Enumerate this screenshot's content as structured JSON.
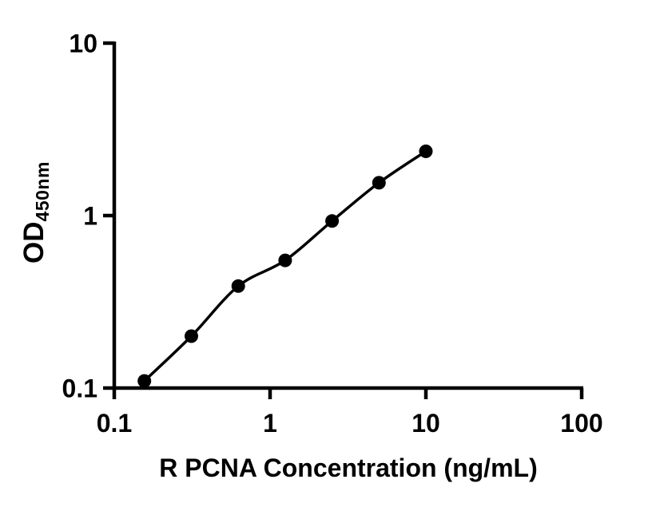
{
  "colors": {
    "foreground": "#000000",
    "background": "#ffffff"
  },
  "chart_data": {
    "type": "scatter",
    "title": "",
    "xlabel": "R PCNA Concentration (ng/mL)",
    "ylabel": {
      "main": "OD",
      "subscript": "450nm"
    },
    "x_scale": "log10",
    "y_scale": "log10",
    "xlim": [
      0.1,
      100
    ],
    "ylim": [
      0.1,
      10
    ],
    "x_tick_values": [
      0.1,
      1,
      10,
      100
    ],
    "x_tick_labels": [
      "0.1",
      "1",
      "10",
      "100"
    ],
    "y_tick_values": [
      10,
      1,
      0.1
    ],
    "y_tick_labels": [
      "10",
      "1",
      "0.1"
    ],
    "grid": false,
    "legend_position": "none",
    "marker": "filled-circle",
    "marker_color": "#000000",
    "line_color": "#000000",
    "fit_line_through_points": true,
    "points": [
      {
        "x": 0.156,
        "y": 0.11
      },
      {
        "x": 0.3125,
        "y": 0.2
      },
      {
        "x": 0.625,
        "y": 0.39
      },
      {
        "x": 1.25,
        "y": 0.55
      },
      {
        "x": 2.5,
        "y": 0.93
      },
      {
        "x": 5,
        "y": 1.55
      },
      {
        "x": 10,
        "y": 2.36
      }
    ]
  }
}
